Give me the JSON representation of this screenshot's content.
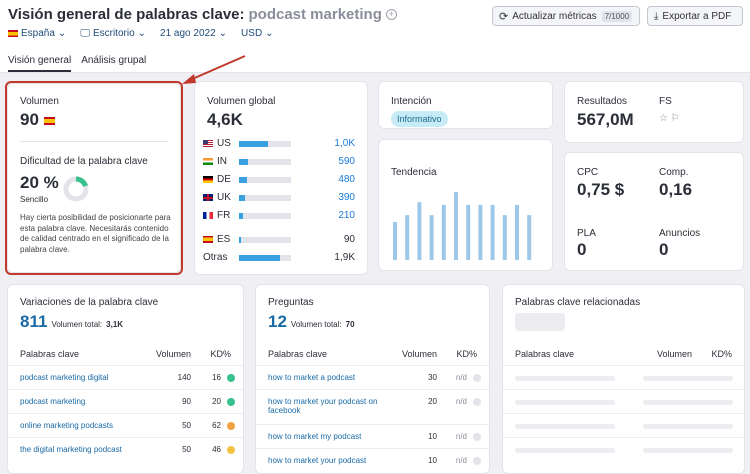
{
  "header": {
    "title": "Visión general de palabras clave:",
    "keyword": "podcast marketing",
    "plus_icon": "+"
  },
  "buttons": {
    "update": "Actualizar métricas",
    "update_count": "7/1000",
    "export": "Exportar a PDF"
  },
  "filters": {
    "country": "España",
    "device": "Escritorio",
    "date": "21 ago 2022",
    "currency": "USD"
  },
  "tabs": [
    "Visión general",
    "Análisis grupal"
  ],
  "volume": {
    "label": "Volumen",
    "value": "90"
  },
  "difficulty": {
    "label": "Dificultad de la palabra clave",
    "value": "20 %",
    "level": "Sencillo",
    "percent": 20,
    "description": "Hay cierta posibilidad de posicionarte para esta palabra clave. Necesitarás contenido de calidad centrado en el significado de la palabra clave."
  },
  "global": {
    "label": "Volumen global",
    "value": "4,6K",
    "countries": [
      {
        "code": "US",
        "flag": "us",
        "value": "1,0K",
        "fill": 0.55
      },
      {
        "code": "IN",
        "flag": "in",
        "value": "590",
        "fill": 0.18
      },
      {
        "code": "DE",
        "flag": "de",
        "value": "480",
        "fill": 0.15
      },
      {
        "code": "UK",
        "flag": "uk",
        "value": "390",
        "fill": 0.12
      },
      {
        "code": "FR",
        "flag": "fr",
        "value": "210",
        "fill": 0.08
      },
      {
        "code": "ES",
        "flag": "es",
        "value": "90",
        "fill": 0.03
      }
    ],
    "others_label": "Otras",
    "others_value": "1,9K",
    "others_fill": 0.78
  },
  "intent": {
    "label": "Intención",
    "badge": "Informativo"
  },
  "trend": {
    "label": "Tendencia",
    "values": [
      0.56,
      0.66,
      0.85,
      0.66,
      0.81,
      1.0,
      0.81,
      0.81,
      0.81,
      0.66,
      0.81,
      0.66
    ]
  },
  "results": {
    "label": "Resultados",
    "value": "567,0M",
    "fs_label": "FS"
  },
  "cpc": {
    "label": "CPC",
    "value": "0,75 $",
    "comp_label": "Comp.",
    "comp_value": "0,16",
    "pla_label": "PLA",
    "pla_value": "0",
    "ads_label": "Anuncios",
    "ads_value": "0"
  },
  "variations": {
    "title": "Variaciones de la palabra clave",
    "count": "811",
    "total_label": "Volumen total:",
    "total": "3,1K",
    "col_kw": "Palabras clave",
    "col_vol": "Volumen",
    "col_kd": "KD%",
    "rows": [
      {
        "kw": "podcast marketing digital",
        "vol": "140",
        "kd": "16",
        "color": "#37c18d"
      },
      {
        "kw": "podcast marketing",
        "vol": "90",
        "kd": "20",
        "color": "#37c18d"
      },
      {
        "kw": "online marketing podcasts",
        "vol": "50",
        "kd": "62",
        "color": "#f0a240"
      },
      {
        "kw": "the digital marketing podcast",
        "vol": "50",
        "kd": "46",
        "color": "#f4c542"
      }
    ]
  },
  "questions": {
    "title": "Preguntas",
    "count": "12",
    "total_label": "Volumen total:",
    "total": "70",
    "col_kw": "Palabras clave",
    "col_vol": "Volumen",
    "col_kd": "KD%",
    "rows": [
      {
        "kw": "how to market a podcast",
        "vol": "30",
        "kd": "n/d"
      },
      {
        "kw": "how to market your podcast on facebook",
        "vol": "20",
        "kd": "n/d"
      },
      {
        "kw": "how to market my podcast",
        "vol": "10",
        "kd": "n/d"
      },
      {
        "kw": "how to market your podcast",
        "vol": "10",
        "kd": "n/d"
      }
    ]
  },
  "related": {
    "title": "Palabras clave relacionadas",
    "col_kw": "Palabras clave",
    "col_vol": "Volumen",
    "col_kd": "KD%"
  }
}
